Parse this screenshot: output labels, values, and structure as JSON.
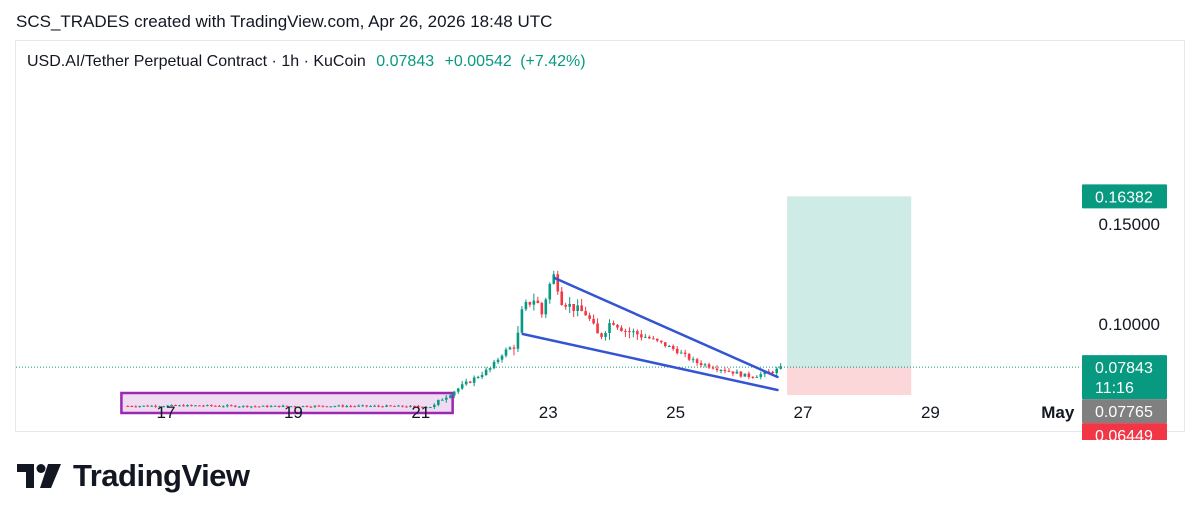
{
  "caption": "SCS_TRADES created with TradingView.com, Apr 26, 2026 18:48 UTC",
  "brand": {
    "name": "TradingView"
  },
  "chart_data": {
    "type": "candlestick",
    "title": "USD.AI/Tether Perpetual Contract · 1h · KuCoin",
    "last_price": "0.07843",
    "change": "+0.00542",
    "change_pct": "(+7.42%)",
    "x_ticks": [
      {
        "day": 17,
        "label": "17"
      },
      {
        "day": 19,
        "label": "19"
      },
      {
        "day": 21,
        "label": "21"
      },
      {
        "day": 23,
        "label": "23"
      },
      {
        "day": 25,
        "label": "25"
      },
      {
        "day": 27,
        "label": "27"
      },
      {
        "day": 29,
        "label": "29"
      },
      {
        "day": 31,
        "label": "May"
      }
    ],
    "y_ticks": [
      {
        "value": 0.15,
        "label": "0.15000"
      },
      {
        "value": 0.1,
        "label": "0.10000"
      }
    ],
    "price_labels": [
      {
        "value": 0.16382,
        "label": "0.16382",
        "color": "#089981"
      },
      {
        "value": 0.07843,
        "label": "0.07843",
        "sub": "11:16",
        "color": "#089981"
      },
      {
        "value": 0.07765,
        "label": "0.07765",
        "color": "#808080"
      },
      {
        "value": 0.06449,
        "label": "0.06449",
        "color": "#f23645"
      }
    ],
    "path": [
      [
        16.4,
        0.059
      ],
      [
        17.5,
        0.0592
      ],
      [
        18.5,
        0.0588
      ],
      [
        19.5,
        0.059
      ],
      [
        20.5,
        0.0589
      ],
      [
        21.2,
        0.0586
      ],
      [
        21.3,
        0.062
      ],
      [
        21.5,
        0.066
      ],
      [
        21.8,
        0.072
      ],
      [
        22.1,
        0.078
      ],
      [
        22.3,
        0.086
      ],
      [
        22.5,
        0.09
      ],
      [
        22.6,
        0.108
      ],
      [
        22.8,
        0.113
      ],
      [
        22.9,
        0.105
      ],
      [
        23.0,
        0.118
      ],
      [
        23.1,
        0.125
      ],
      [
        23.2,
        0.112
      ],
      [
        23.4,
        0.108
      ],
      [
        23.6,
        0.105
      ],
      [
        23.8,
        0.093
      ],
      [
        24.0,
        0.102
      ],
      [
        24.2,
        0.097
      ],
      [
        24.5,
        0.094
      ],
      [
        24.8,
        0.09
      ],
      [
        25.0,
        0.087
      ],
      [
        25.3,
        0.081
      ],
      [
        25.6,
        0.0785
      ],
      [
        25.9,
        0.076
      ],
      [
        26.1,
        0.074
      ],
      [
        26.3,
        0.0745
      ],
      [
        26.5,
        0.076
      ],
      [
        26.7,
        0.0784
      ]
    ],
    "annotations": {
      "consolidation_box": {
        "x0": 16.3,
        "x1": 21.5,
        "y0": 0.0555,
        "y1": 0.0655,
        "color": "#9c27b0"
      },
      "wedge_upper": {
        "x0": 23.1,
        "y0": 0.123,
        "x1": 26.6,
        "y1": 0.0735,
        "color": "#3355d4"
      },
      "wedge_lower": {
        "x0": 22.6,
        "y0": 0.095,
        "x1": 26.6,
        "y1": 0.067,
        "color": "#3355d4"
      },
      "long_position": {
        "x0": 26.75,
        "x1": 28.7,
        "entry": 0.07843,
        "target": 0.16382,
        "stop": 0.06449
      }
    }
  }
}
